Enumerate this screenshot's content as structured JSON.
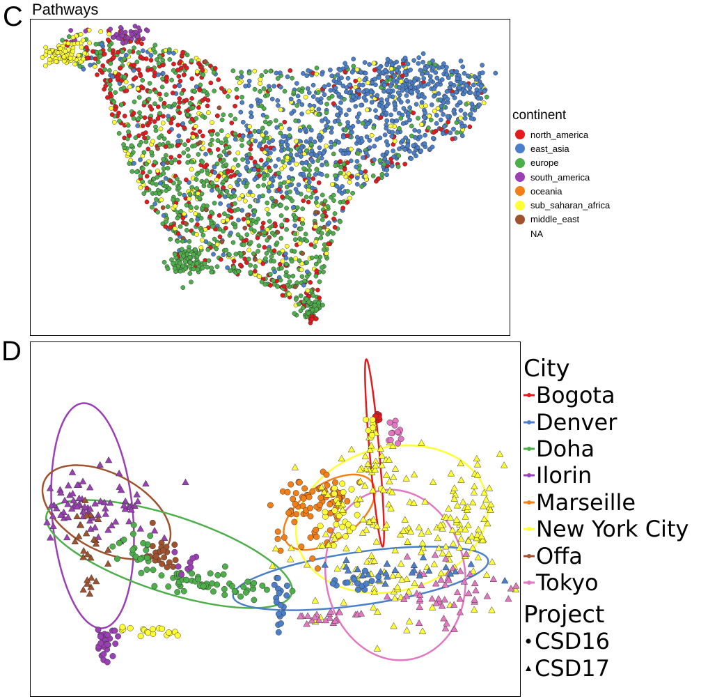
{
  "panel_c": {
    "letter": "C",
    "title": "Pathways",
    "legend": {
      "title": "continent",
      "items": [
        {
          "label": "north_america",
          "color": "#e41a1c"
        },
        {
          "label": "east_asia",
          "color": "#4a7fc9"
        },
        {
          "label": "europe",
          "color": "#4daf4a"
        },
        {
          "label": "south_america",
          "color": "#9b3fb5"
        },
        {
          "label": "oceania",
          "color": "#f57f17"
        },
        {
          "label": "sub_saharan_africa",
          "color": "#ffff33"
        },
        {
          "label": "middle_east",
          "color": "#a0522d"
        },
        {
          "label": "NA",
          "color": ""
        }
      ]
    }
  },
  "panel_d": {
    "letter": "D",
    "legend": {
      "title": "City",
      "items": [
        {
          "label": "Bogota",
          "color": "#e41a1c"
        },
        {
          "label": "Denver",
          "color": "#4a7fc9"
        },
        {
          "label": "Doha",
          "color": "#4daf4a"
        },
        {
          "label": "Ilorin",
          "color": "#9b3fb5"
        },
        {
          "label": "Marseille",
          "color": "#f57f17"
        },
        {
          "label": "New York City",
          "color": "#ffff33"
        },
        {
          "label": "Offa",
          "color": "#a0522d"
        },
        {
          "label": "Tokyo",
          "color": "#e377c2"
        }
      ],
      "shape_title": "Project",
      "shapes": [
        {
          "label": "CSD16",
          "shape": "circle"
        },
        {
          "label": "CSD17",
          "shape": "triangle"
        }
      ]
    }
  },
  "chart_data": [
    {
      "type": "scatter",
      "title": "Pathways",
      "xlabel": "",
      "ylabel": "",
      "grid": false,
      "legend_placement": "right",
      "legend_title": "continent",
      "series": [
        {
          "name": "north_america",
          "color": "#e41a1c",
          "points": [
            [
              0.3,
              0.8
            ],
            [
              0.35,
              0.75
            ],
            [
              0.25,
              0.7
            ],
            [
              0.3,
              0.65
            ],
            [
              0.38,
              0.55
            ],
            [
              0.42,
              0.6
            ],
            [
              0.28,
              0.55
            ],
            [
              0.4,
              0.45
            ],
            [
              0.45,
              0.35
            ],
            [
              0.5,
              0.25
            ],
            [
              0.55,
              0.1
            ],
            [
              0.33,
              0.72
            ],
            [
              0.36,
              0.68
            ],
            [
              0.48,
              0.3
            ],
            [
              0.4,
              0.05
            ]
          ]
        },
        {
          "name": "east_asia",
          "color": "#4a7fc9",
          "points": [
            [
              0.6,
              0.85
            ],
            [
              0.7,
              0.9
            ],
            [
              0.8,
              0.88
            ],
            [
              0.9,
              0.85
            ],
            [
              0.75,
              0.78
            ],
            [
              0.65,
              0.72
            ],
            [
              0.85,
              0.75
            ],
            [
              0.72,
              0.65
            ],
            [
              0.62,
              0.6
            ],
            [
              0.55,
              0.68
            ],
            [
              0.5,
              0.72
            ],
            [
              0.68,
              0.55
            ],
            [
              0.58,
              0.5
            ],
            [
              0.78,
              0.82
            ],
            [
              0.95,
              0.82
            ],
            [
              0.88,
              0.7
            ]
          ]
        },
        {
          "name": "europe",
          "color": "#4daf4a",
          "points": [
            [
              0.35,
              0.6
            ],
            [
              0.3,
              0.5
            ],
            [
              0.32,
              0.4
            ],
            [
              0.38,
              0.35
            ],
            [
              0.35,
              0.25
            ],
            [
              0.4,
              0.2
            ],
            [
              0.45,
              0.15
            ],
            [
              0.48,
              0.1
            ],
            [
              0.5,
              0.05
            ],
            [
              0.3,
              0.45
            ],
            [
              0.42,
              0.5
            ],
            [
              0.25,
              0.6
            ],
            [
              0.45,
              0.4
            ],
            [
              0.37,
              0.3
            ],
            [
              0.43,
              0.25
            ]
          ]
        },
        {
          "name": "south_america",
          "color": "#9b3fb5",
          "points": [
            [
              0.1,
              0.98
            ],
            [
              0.12,
              0.96
            ]
          ]
        },
        {
          "name": "oceania",
          "color": "#f57f17",
          "points": [
            [
              0.62,
              0.88
            ]
          ]
        },
        {
          "name": "sub_saharan_africa",
          "color": "#ffff33",
          "points": [
            [
              0.05,
              0.95
            ],
            [
              0.08,
              0.92
            ],
            [
              0.12,
              0.9
            ],
            [
              0.45,
              0.55
            ],
            [
              0.52,
              0.3
            ],
            [
              0.5,
              0.15
            ],
            [
              0.55,
              0.75
            ],
            [
              0.35,
              0.2
            ]
          ]
        },
        {
          "name": "middle_east",
          "color": "#a0522d",
          "points": [
            [
              0.4,
              0.42
            ]
          ]
        }
      ]
    },
    {
      "type": "scatter",
      "title": "",
      "xlabel": "",
      "ylabel": "",
      "grid": false,
      "legend_placement": "right",
      "legend_title": "City",
      "shape_legend_title": "Project",
      "series": [
        {
          "name": "Bogota",
          "color": "#e41a1c",
          "points": [
            [
              0.66,
              0.92
            ],
            [
              0.67,
              0.9
            ],
            [
              0.66,
              0.88
            ]
          ]
        },
        {
          "name": "Denver",
          "color": "#4a7fc9",
          "points": [
            [
              0.45,
              0.28
            ],
            [
              0.55,
              0.3
            ],
            [
              0.65,
              0.32
            ],
            [
              0.75,
              0.35
            ],
            [
              0.82,
              0.36
            ],
            [
              0.46,
              0.2
            ],
            [
              0.58,
              0.25
            ]
          ]
        },
        {
          "name": "Doha",
          "color": "#4daf4a",
          "points": [
            [
              0.15,
              0.48
            ],
            [
              0.2,
              0.45
            ],
            [
              0.25,
              0.4
            ],
            [
              0.3,
              0.35
            ],
            [
              0.35,
              0.32
            ],
            [
              0.4,
              0.3
            ],
            [
              0.22,
              0.42
            ]
          ]
        },
        {
          "name": "Ilorin",
          "color": "#9b3fb5",
          "points": [
            [
              0.05,
              0.6
            ],
            [
              0.08,
              0.58
            ],
            [
              0.12,
              0.55
            ],
            [
              0.1,
              0.12
            ],
            [
              0.11,
              0.1
            ],
            [
              0.22,
              0.5
            ],
            [
              0.3,
              0.38
            ]
          ]
        },
        {
          "name": "Marseille",
          "color": "#f57f17",
          "points": [
            [
              0.44,
              0.58
            ],
            [
              0.48,
              0.62
            ],
            [
              0.52,
              0.65
            ],
            [
              0.55,
              0.67
            ],
            [
              0.46,
              0.55
            ]
          ]
        },
        {
          "name": "New York City",
          "color": "#ffff33",
          "points": [
            [
              0.6,
              0.6
            ],
            [
              0.7,
              0.65
            ],
            [
              0.8,
              0.62
            ],
            [
              0.75,
              0.5
            ],
            [
              0.65,
              0.45
            ],
            [
              0.85,
              0.45
            ],
            [
              0.72,
              0.38
            ],
            [
              0.62,
              0.35
            ],
            [
              0.15,
              0.13
            ],
            [
              0.2,
              0.14
            ]
          ]
        },
        {
          "name": "Offa",
          "color": "#a0522d",
          "points": [
            [
              0.1,
              0.55
            ],
            [
              0.15,
              0.52
            ],
            [
              0.2,
              0.5
            ],
            [
              0.14,
              0.4
            ]
          ]
        },
        {
          "name": "Tokyo",
          "color": "#e377c2",
          "points": [
            [
              0.8,
              0.3
            ],
            [
              0.85,
              0.33
            ],
            [
              0.78,
              0.25
            ],
            [
              0.72,
              0.22
            ],
            [
              0.6,
              0.2
            ],
            [
              0.55,
              0.22
            ],
            [
              0.68,
              0.88
            ]
          ]
        }
      ]
    }
  ]
}
